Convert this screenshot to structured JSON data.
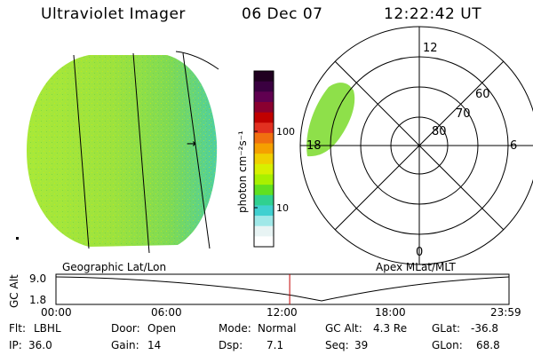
{
  "header": {
    "instrument": "Ultraviolet Imager",
    "date": "06 Dec 07",
    "time": "12:22:42 UT"
  },
  "colorbar": {
    "unit_label": "photon cm⁻²s⁻¹",
    "ticks": [
      "100",
      "10"
    ],
    "colors": [
      "#200020",
      "#3a0040",
      "#600050",
      "#8a0030",
      "#c00000",
      "#e23020",
      "#f07010",
      "#f5a000",
      "#f0d000",
      "#d8f000",
      "#a8f000",
      "#60e020",
      "#30d090",
      "#40d0d0",
      "#a0e8e8",
      "#e8f4f4",
      "#ffffff"
    ]
  },
  "left_panel": {
    "caption": "Geographic Lat/Lon",
    "mark": "→"
  },
  "right_panel": {
    "caption": "Apex MLat/MLT",
    "mlt_labels": {
      "top": "12",
      "bottom": "0",
      "left": "18",
      "right": "6"
    },
    "lat_labels": [
      "60",
      "70",
      "80"
    ]
  },
  "timeline": {
    "axis_label": "GC Alt",
    "y_ticks": [
      "9.0",
      "1.8"
    ],
    "x_ticks": [
      "00:00",
      "06:00",
      "12:00",
      "18:00",
      "23:59"
    ],
    "current_time_fraction": 0.5158
  },
  "info": {
    "filter_label": "Flt:",
    "filter_value": "LBHL",
    "ip_label": "IP:",
    "ip_value": "36.0",
    "door_label": "Door:",
    "door_value": "Open",
    "gain_label": "Gain:",
    "gain_value": "14",
    "mode_label": "Mode:",
    "mode_value": "Normal",
    "dsp_label": "Dsp:",
    "dsp_value": "7.1",
    "gcalt_label": "GC Alt:",
    "gcalt_value": "4.3 Re",
    "seq_label": "Seq:",
    "seq_value": "39",
    "glat_label": "GLat:",
    "glat_value": "-36.8",
    "glon_label": "GLon:",
    "glon_value": "68.8"
  }
}
